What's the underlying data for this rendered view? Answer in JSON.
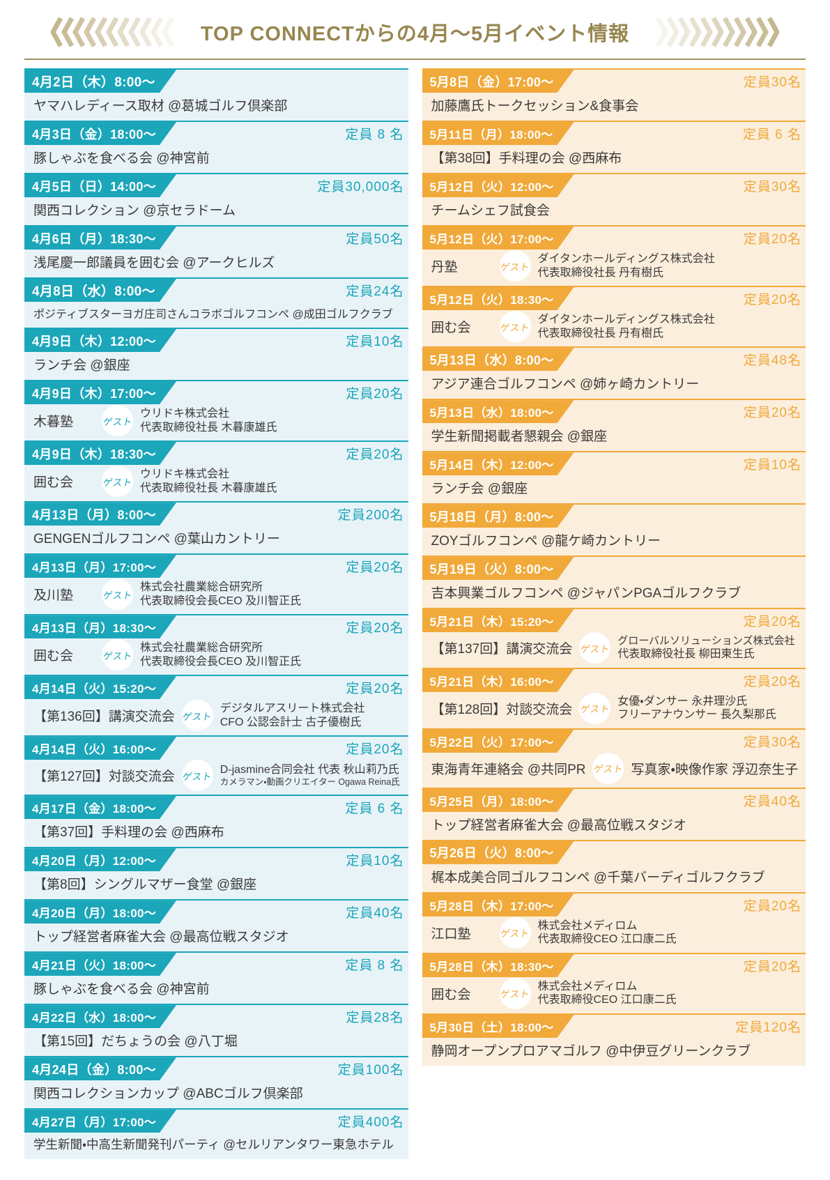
{
  "header": {
    "title": "TOP CONNECTからの4月～5月イベント情報"
  },
  "icons": {
    "left": "chevrons-left-icon",
    "right": "chevrons-right-icon"
  },
  "guest_badge_label": "ゲスト",
  "colors": {
    "april_accent": "#1ba6ba",
    "april_bg": "#e8f3f8",
    "may_accent": "#f1a93a",
    "may_bg": "#fbeedd",
    "title_gold": "#97864f",
    "divider_gold": "#a0905f",
    "chevron_gold": "#c4b78e",
    "body_text": "#3c3a38"
  },
  "columns": [
    {
      "name": "april",
      "events": [
        {
          "date": "4月2日（木）8:00～",
          "capacity": "",
          "title": "ヤマハレディース取材 @葛城ゴルフ倶楽部"
        },
        {
          "date": "4月3日（金）18:00～",
          "capacity": "定員 8 名",
          "title": "豚しゃぶを食べる会 @神宮前"
        },
        {
          "date": "4月5日（日）14:00～",
          "capacity": "定員30,000名",
          "title": "関西コレクション @京セラドーム"
        },
        {
          "date": "4月6日（月）18:30～",
          "capacity": "定員50名",
          "title": "浅尾慶一郎議員を囲む会 @アークヒルズ"
        },
        {
          "date": "4月8日（水）8:00～",
          "capacity": "定員24名",
          "title": "ポジティブスターヨガ庄司さんコラボゴルフコンペ @成田ゴルフクラブ"
        },
        {
          "date": "4月9日（木）12:00～",
          "capacity": "定員10名",
          "title": "ランチ会 @銀座"
        },
        {
          "date": "4月9日（木）17:00～",
          "capacity": "定員20名",
          "title": "木暮塾",
          "guest_lines": [
            "ウリドキ株式会社",
            "代表取締役社長 木暮康雄氏"
          ]
        },
        {
          "date": "4月9日（木）18:30～",
          "capacity": "定員20名",
          "title": "囲む会",
          "guest_lines": [
            "ウリドキ株式会社",
            "代表取締役社長 木暮康雄氏"
          ]
        },
        {
          "date": "4月13日（月）8:00～",
          "capacity": "定員200名",
          "title": "GENGENゴルフコンペ @葉山カントリー"
        },
        {
          "date": "4月13日（月）17:00～",
          "capacity": "定員20名",
          "title": "及川塾",
          "guest_lines": [
            "株式会社農業総合研究所",
            "代表取締役会長CEO 及川智正氏"
          ]
        },
        {
          "date": "4月13日（月）18:30～",
          "capacity": "定員20名",
          "title": "囲む会",
          "guest_lines": [
            "株式会社農業総合研究所",
            "代表取締役会長CEO 及川智正氏"
          ]
        },
        {
          "date": "4月14日（火）15:20～",
          "capacity": "定員20名",
          "title": "【第136回】講演交流会",
          "guest_lines": [
            "デジタルアスリート株式会社",
            "CFO 公認会計士 古子優樹氏"
          ]
        },
        {
          "date": "4月14日（火）16:00～",
          "capacity": "定員20名",
          "title": "【第127回】対談交流会",
          "guest_lines": [
            "D-jasmine合同会社 代表 秋山莉乃氏",
            "カメラマン・動画クリエイター Ogawa Reina氏"
          ]
        },
        {
          "date": "4月17日（金）18:00～",
          "capacity": "定員 6 名",
          "title": "【第37回】手料理の会 @西麻布"
        },
        {
          "date": "4月20日（月）12:00～",
          "capacity": "定員10名",
          "title": "【第8回】シングルマザー食堂 @銀座"
        },
        {
          "date": "4月20日（月）18:00～",
          "capacity": "定員40名",
          "title": "トップ経営者麻雀大会 @最高位戦スタジオ"
        },
        {
          "date": "4月21日（火）18:00～",
          "capacity": "定員 8 名",
          "title": "豚しゃぶを食べる会 @神宮前"
        },
        {
          "date": "4月22日（水）18:00～",
          "capacity": "定員28名",
          "title": "【第15回】だちょうの会 @八丁堀"
        },
        {
          "date": "4月24日（金）8:00～",
          "capacity": "定員100名",
          "title": "関西コレクションカップ @ABCゴルフ倶楽部"
        },
        {
          "date": "4月27日（月）17:00～",
          "capacity": "定員400名",
          "title": "学生新聞・中高生新聞発刊パーティ @セルリアンタワー東急ホテル"
        }
      ]
    },
    {
      "name": "may",
      "events": [
        {
          "date": "5月8日（金）17:00～",
          "capacity": "定員30名",
          "title": "加藤鷹氏トークセッション&食事会"
        },
        {
          "date": "5月11日（月）18:00～",
          "capacity": "定員 6 名",
          "title": "【第38回】手料理の会 @西麻布"
        },
        {
          "date": "5月12日（火）12:00～",
          "capacity": "定員30名",
          "title": "チームシェフ試食会"
        },
        {
          "date": "5月12日（火）17:00～",
          "capacity": "定員20名",
          "title": "丹塾",
          "guest_lines": [
            "ダイタンホールディングス株式会社",
            "代表取締役社長 丹有樹氏"
          ]
        },
        {
          "date": "5月12日（火）18:30～",
          "capacity": "定員20名",
          "title": "囲む会",
          "guest_lines": [
            "ダイタンホールディングス株式会社",
            "代表取締役社長 丹有樹氏"
          ]
        },
        {
          "date": "5月13日（水）8:00～",
          "capacity": "定員48名",
          "title": "アジア連合ゴルフコンペ @姉ヶ崎カントリー"
        },
        {
          "date": "5月13日（水）18:00～",
          "capacity": "定員20名",
          "title": "学生新聞掲載者懇親会 @銀座"
        },
        {
          "date": "5月14日（木）12:00～",
          "capacity": "定員10名",
          "title": "ランチ会 @銀座"
        },
        {
          "date": "5月18日（月）8:00～",
          "capacity": "",
          "title": "ZOYゴルフコンペ @龍ケ崎カントリー"
        },
        {
          "date": "5月19日（火）8:00～",
          "capacity": "",
          "title": "吉本興業ゴルフコンペ @ジャパンPGAゴルフクラブ"
        },
        {
          "date": "5月21日（木）15:20～",
          "capacity": "定員20名",
          "title": "【第137回】講演交流会",
          "guest_lines": [
            "グローバルソリューションズ株式会社",
            "代表取締役社長 柳田東生氏"
          ]
        },
        {
          "date": "5月21日（木）16:00～",
          "capacity": "定員20名",
          "title": "【第128回】対談交流会",
          "guest_lines": [
            "女優・ダンサー 永井理沙氏",
            "フリーアナウンサー 長久梨那氏"
          ]
        },
        {
          "date": "5月22日（火）17:00～",
          "capacity": "定員30名",
          "title": "東海青年連絡会 @共同PR",
          "guest_inline": "写真家・映像作家 浮辺奈生子"
        },
        {
          "date": "5月25日（月）18:00～",
          "capacity": "定員40名",
          "title": "トップ経営者麻雀大会 @最高位戦スタジオ"
        },
        {
          "date": "5月26日（火）8:00～",
          "capacity": "",
          "title": "梶本成美合同ゴルフコンペ @千葉バーディゴルフクラブ"
        },
        {
          "date": "5月28日（木）17:00～",
          "capacity": "定員20名",
          "title": "江口塾",
          "guest_lines": [
            "株式会社メディロム",
            "代表取締役CEO 江口康二氏"
          ]
        },
        {
          "date": "5月28日（木）18:30～",
          "capacity": "定員20名",
          "title": "囲む会",
          "guest_lines": [
            "株式会社メディロム",
            "代表取締役CEO 江口康二氏"
          ]
        },
        {
          "date": "5月30日（土）18:00～",
          "capacity": "定員120名",
          "title": "静岡オープンプロアマゴルフ @中伊豆グリーンクラブ"
        }
      ]
    }
  ]
}
